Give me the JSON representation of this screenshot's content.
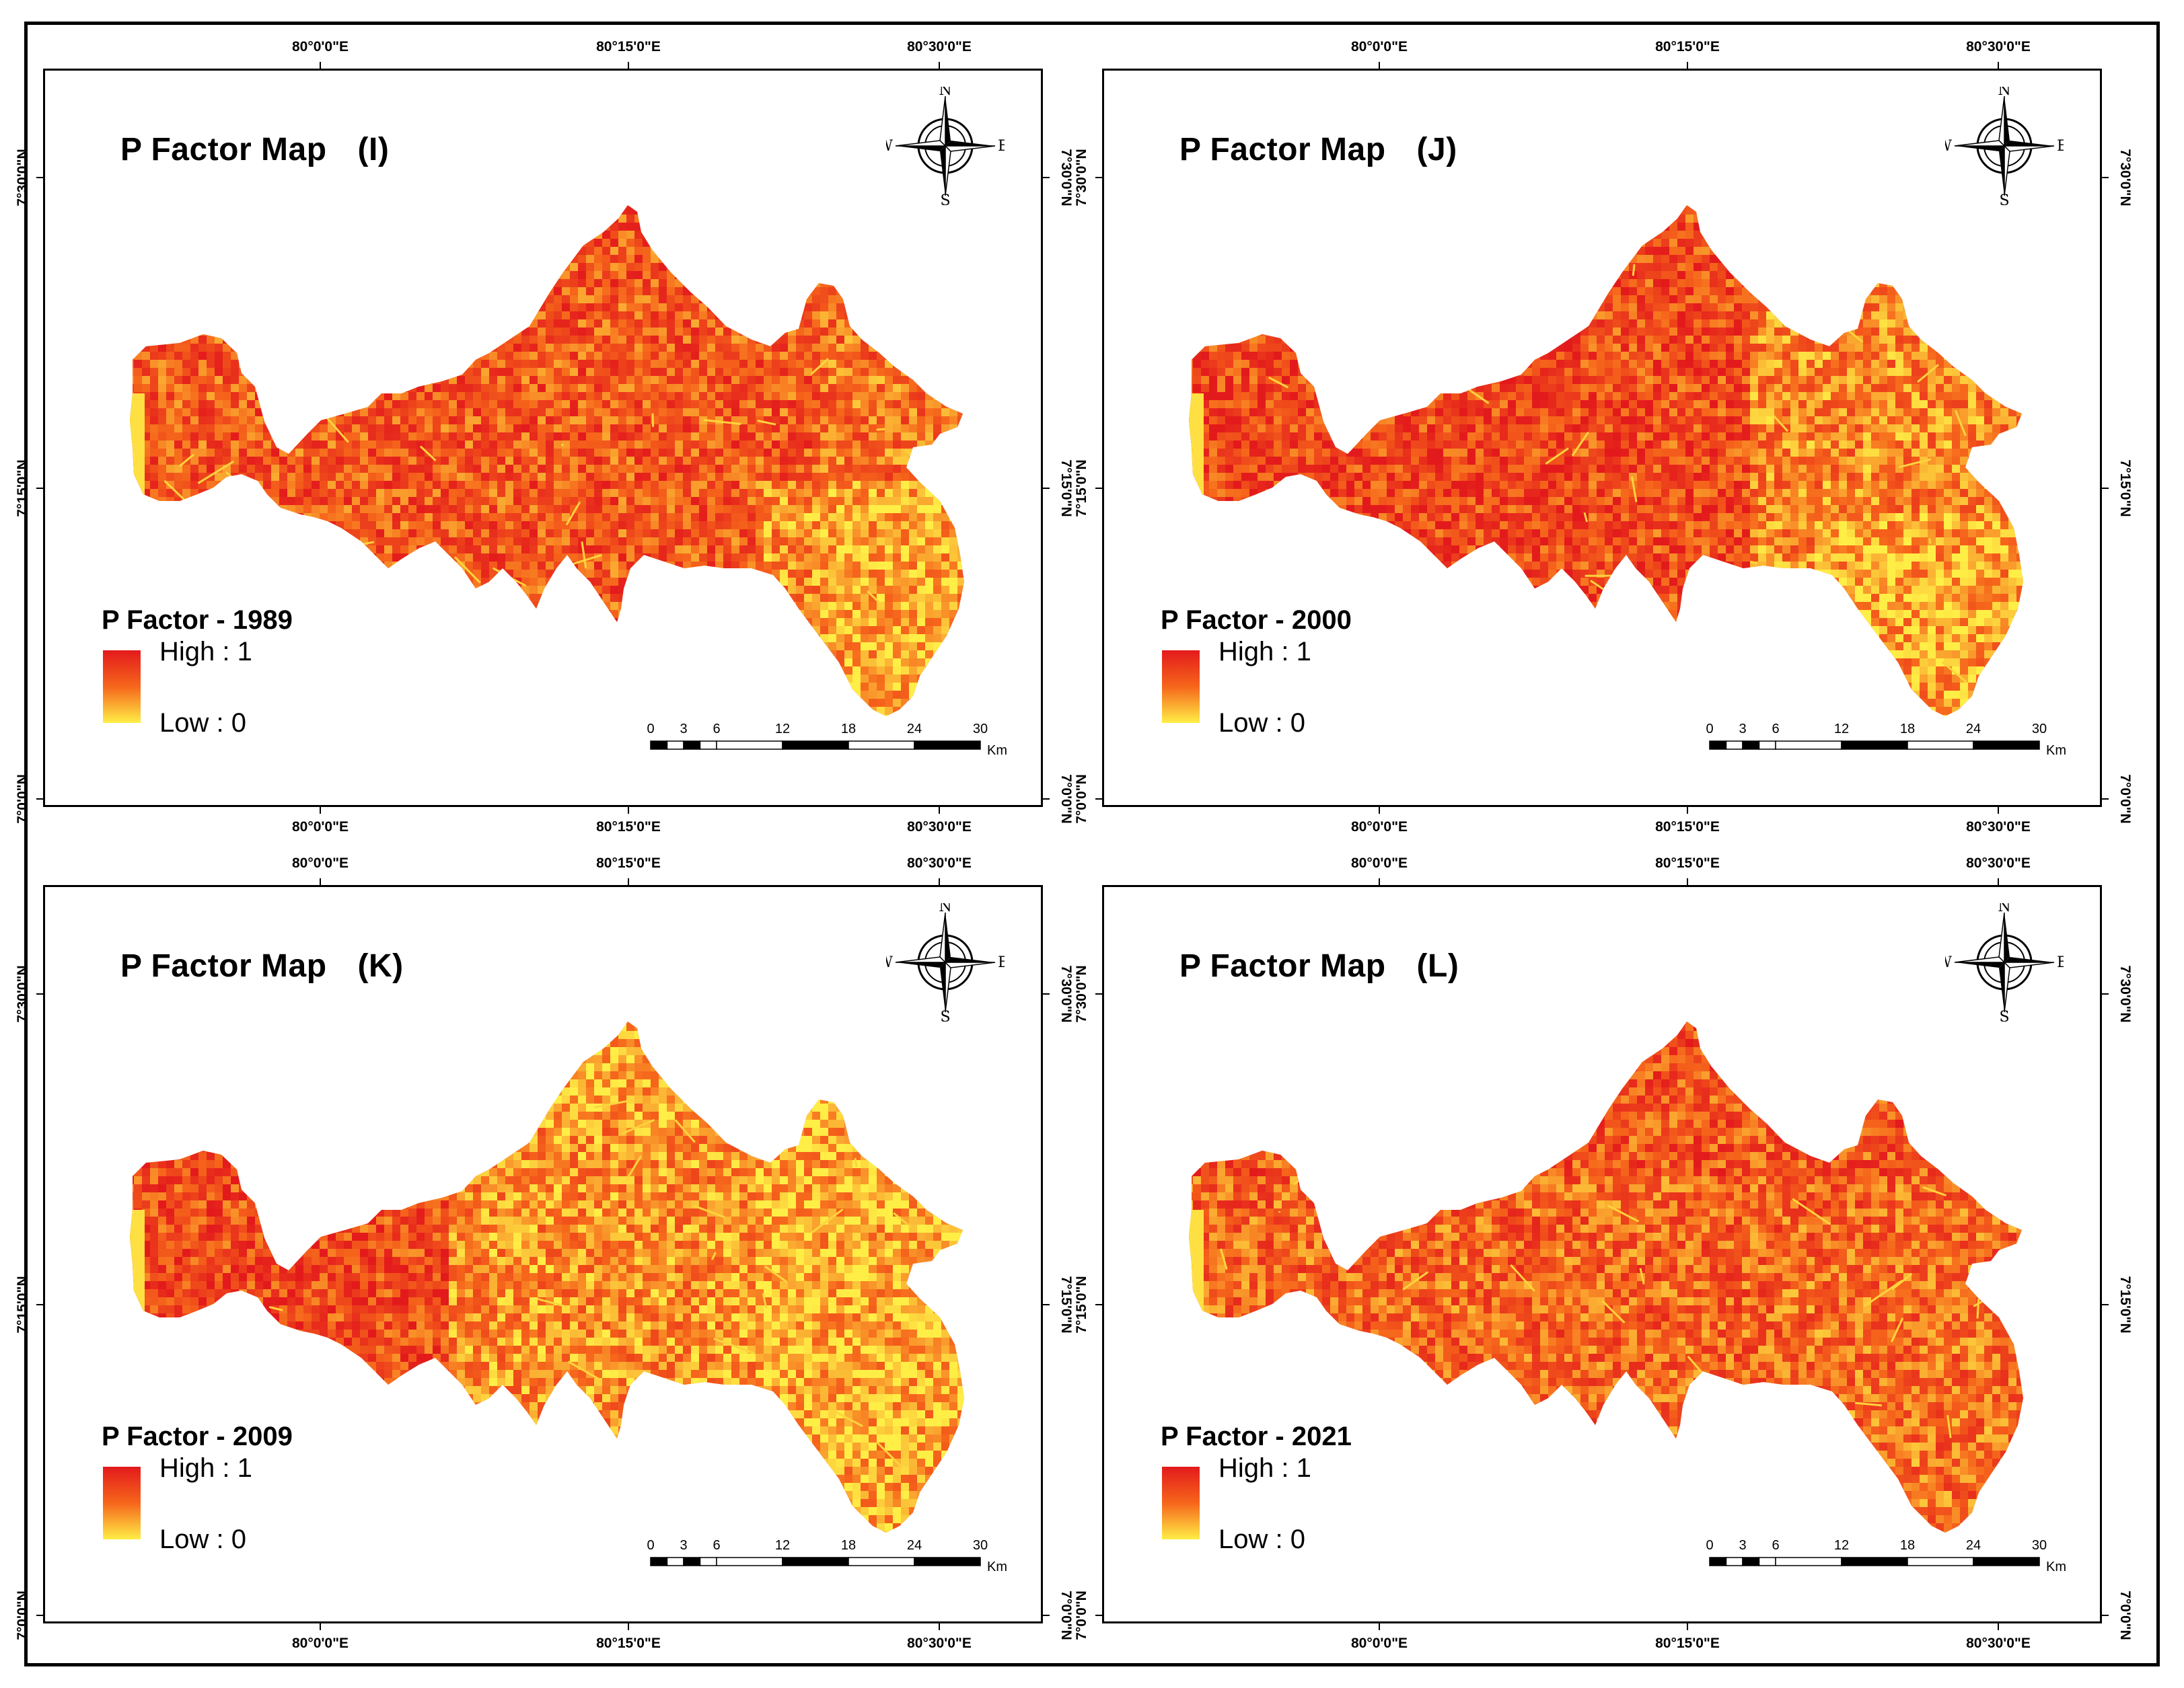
{
  "figure": {
    "colors": {
      "high": "#e31a1c",
      "mid": "#f6661b",
      "low": "#ffee46",
      "frame": "#000000"
    },
    "longitude_labels": [
      "80°0'0\"E",
      "80°15'0\"E",
      "80°30'0\"E"
    ],
    "latitude_labels": [
      "7°30'0\"N",
      "7°15'0\"N",
      "7°0'0\"N"
    ],
    "compass": {
      "north": "N",
      "south": "S",
      "east": "E",
      "west": "W",
      "icon": "compass-rose-icon"
    },
    "scale": {
      "ticks": [
        "0",
        "3",
        "6",
        "12",
        "18",
        "24",
        "30"
      ],
      "unit": "Km"
    },
    "legend": {
      "high_label": "High : 1",
      "low_label": "Low : 0"
    },
    "panels": [
      {
        "title": "P Factor Map",
        "letter": "(I)",
        "legend_title": "P Factor - 1989"
      },
      {
        "title": "P Factor Map",
        "letter": "(J)",
        "legend_title": "P Factor - 2000"
      },
      {
        "title": "P Factor Map",
        "letter": "(K)",
        "legend_title": "P Factor - 2009"
      },
      {
        "title": "P Factor Map",
        "letter": "(L)",
        "legend_title": "P Factor - 2021"
      }
    ]
  }
}
